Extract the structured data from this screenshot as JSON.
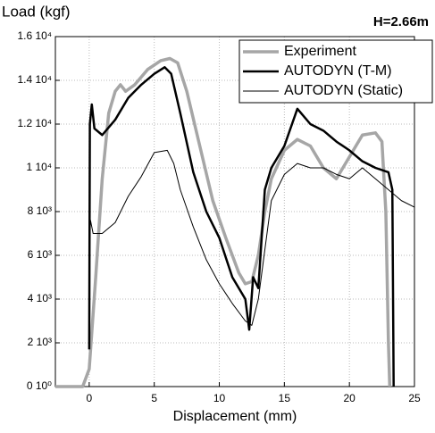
{
  "chart_data": {
    "type": "line",
    "y_label": "Load (kgf)",
    "x_label": "Displacement (mm)",
    "annotation": "H=2.66m",
    "xlim": [
      -2.6,
      25
    ],
    "ylim": [
      0,
      16000
    ],
    "xticks": [
      0,
      5,
      10,
      15,
      20,
      25
    ],
    "yticks": [
      {
        "value": 0,
        "label": "0 10⁰"
      },
      {
        "value": 2000,
        "label": "2 10³"
      },
      {
        "value": 4000,
        "label": "4 10³"
      },
      {
        "value": 6000,
        "label": "6 10³"
      },
      {
        "value": 8000,
        "label": "8 10³"
      },
      {
        "value": 10000,
        "label": "1 10⁴"
      },
      {
        "value": 12000,
        "label": "1.2 10⁴"
      },
      {
        "value": 14000,
        "label": "1.4 10⁴"
      },
      {
        "value": 16000,
        "label": "1.6 10⁴"
      }
    ],
    "grid": true,
    "legend": "upper right",
    "series": [
      {
        "name": "Experiment",
        "color": "#a6a6a6",
        "width": 3.5,
        "x": [
          -2.6,
          -0.5,
          0,
          0.5,
          1,
          1.5,
          2,
          2.4,
          2.8,
          3.5,
          4.5,
          5.5,
          6.2,
          6.8,
          7.5,
          8.5,
          9.5,
          10.5,
          11.5,
          12,
          12.5,
          13,
          13.5,
          14,
          15,
          16,
          17,
          18,
          19,
          20,
          21,
          22,
          22.5,
          22.8,
          23,
          23.1
        ],
        "values": [
          0,
          0,
          800,
          5000,
          9500,
          12500,
          13500,
          13800,
          13500,
          13800,
          14500,
          14900,
          15000,
          14800,
          13500,
          11000,
          8500,
          6800,
          5200,
          4700,
          4800,
          6000,
          8000,
          9500,
          10800,
          11300,
          11000,
          10000,
          9500,
          10500,
          11500,
          11600,
          11200,
          8000,
          2000,
          0
        ]
      },
      {
        "name": "AUTODYN (T-M)",
        "color": "#000000",
        "width": 2.5,
        "x": [
          0,
          0.05,
          0.2,
          0.4,
          1,
          2,
          3,
          4,
          5,
          5.8,
          6.3,
          7,
          8,
          9,
          10,
          11,
          12,
          12.3,
          12.6,
          13,
          13.5,
          14,
          15,
          16,
          17,
          18,
          19,
          20,
          21,
          22,
          23,
          23.3,
          23.4
        ],
        "values": [
          1700,
          12000,
          12900,
          11800,
          11500,
          12200,
          13200,
          13800,
          14300,
          14600,
          14300,
          12500,
          9800,
          8000,
          6800,
          5000,
          4000,
          2600,
          5000,
          4500,
          9000,
          10000,
          11000,
          12700,
          12000,
          11700,
          11200,
          10800,
          10300,
          10000,
          9800,
          9000,
          0
        ]
      },
      {
        "name": "AUTODYN (Static)",
        "color": "#000000",
        "width": 1,
        "x": [
          0,
          0.1,
          0.3,
          1,
          2,
          3,
          4,
          5,
          6,
          6.5,
          7,
          8,
          9,
          10,
          11,
          12,
          12.5,
          13,
          14,
          15,
          16,
          17,
          18,
          19,
          20,
          21,
          22,
          23,
          24,
          25
        ],
        "values": [
          6000,
          7600,
          7000,
          7000,
          7500,
          8700,
          9600,
          10700,
          10800,
          10200,
          9000,
          7300,
          5800,
          4700,
          3800,
          3000,
          2800,
          4000,
          8500,
          9700,
          10200,
          10000,
          10000,
          9700,
          9500,
          10000,
          9500,
          9000,
          8500,
          8200
        ]
      }
    ]
  }
}
